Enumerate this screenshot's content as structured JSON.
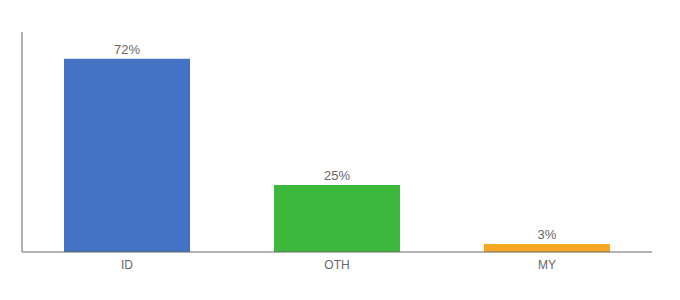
{
  "chart_data": {
    "type": "bar",
    "categories": [
      "ID",
      "OTH",
      "MY"
    ],
    "values": [
      72,
      25,
      3
    ],
    "value_labels": [
      "72%",
      "25%",
      "3%"
    ],
    "colors": [
      "#4472c4",
      "#3cb93c",
      "#f5a623"
    ],
    "ylim": [
      0,
      82
    ],
    "grid": false,
    "data_labels": true,
    "tick_labels": "x"
  }
}
